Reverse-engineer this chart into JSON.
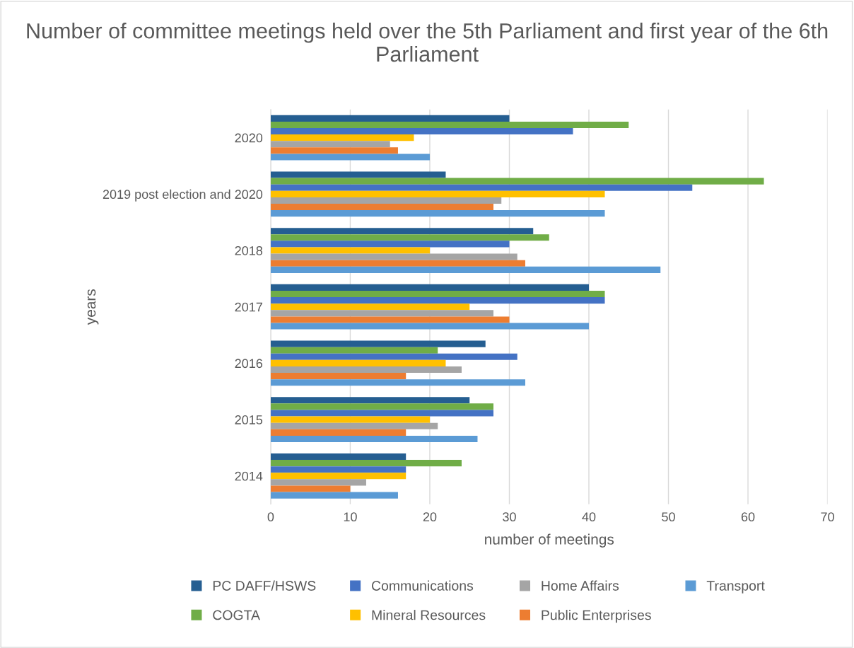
{
  "chart_data": {
    "type": "bar",
    "orientation": "horizontal",
    "title": "Number of committee meetings held over the 5th Parliament and first year of the 6th Parliament",
    "xlabel": "number of meetings",
    "ylabel": "years",
    "categories": [
      "2020",
      "2019 post election and 2020",
      "2018",
      "2017",
      "2016",
      "2015",
      "2014"
    ],
    "series": [
      {
        "name": "PC DAFF/HSWS",
        "color": "#255e91",
        "values": [
          30,
          22,
          33,
          40,
          27,
          25,
          17
        ]
      },
      {
        "name": "COGTA",
        "color": "#70ad47",
        "values": [
          45,
          62,
          35,
          42,
          21,
          28,
          24
        ]
      },
      {
        "name": "Communications",
        "color": "#4472c4",
        "values": [
          38,
          53,
          30,
          42,
          31,
          28,
          17
        ]
      },
      {
        "name": "Mineral Resources",
        "color": "#ffc000",
        "values": [
          18,
          42,
          20,
          25,
          22,
          20,
          17
        ]
      },
      {
        "name": "Home Affairs",
        "color": "#a5a5a5",
        "values": [
          15,
          29,
          31,
          28,
          24,
          21,
          12
        ]
      },
      {
        "name": "Public Enterprises",
        "color": "#ed7d31",
        "values": [
          16,
          28,
          32,
          30,
          17,
          17,
          10
        ]
      },
      {
        "name": "Transport",
        "color": "#5b9bd5",
        "values": [
          20,
          42,
          49,
          40,
          32,
          26,
          16
        ]
      }
    ],
    "xlim": [
      0,
      70
    ],
    "xticks": [
      0,
      10,
      20,
      30,
      40,
      50,
      60,
      70
    ],
    "grid": "x",
    "legend": "bottom"
  }
}
